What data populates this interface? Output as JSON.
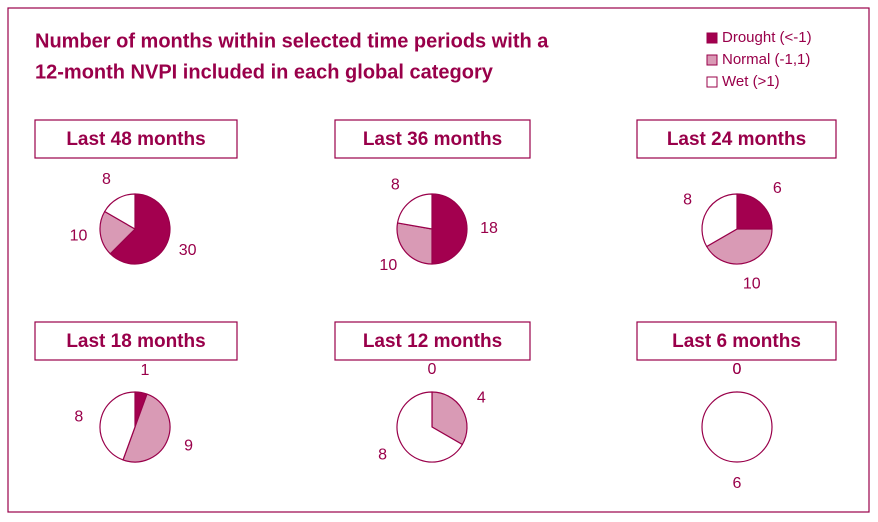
{
  "header": {
    "title": [
      "Number of months within selected time periods with a",
      "12-month NVPI included in each global category"
    ]
  },
  "legend": {
    "categories": [
      "Drought (<-1)",
      "Normal (-1,1)",
      "Wet (>1)"
    ],
    "colors": [
      "#a3004f",
      "#d99ab5",
      "#ffffff"
    ]
  },
  "chart_data": [
    {
      "type": "pie",
      "title": "Last 48 months",
      "values": [
        30,
        10,
        8
      ]
    },
    {
      "type": "pie",
      "title": "Last 36 months",
      "values": [
        18,
        10,
        8
      ]
    },
    {
      "type": "pie",
      "title": "Last 24 months",
      "values": [
        6,
        10,
        8
      ]
    },
    {
      "type": "pie",
      "title": "Last 18 months",
      "values": [
        1,
        9,
        8
      ]
    },
    {
      "type": "pie",
      "title": "Last 12 months",
      "values": [
        0,
        4,
        8
      ]
    },
    {
      "type": "pie",
      "title": "Last 6 months",
      "values": [
        0,
        0,
        6
      ]
    }
  ]
}
